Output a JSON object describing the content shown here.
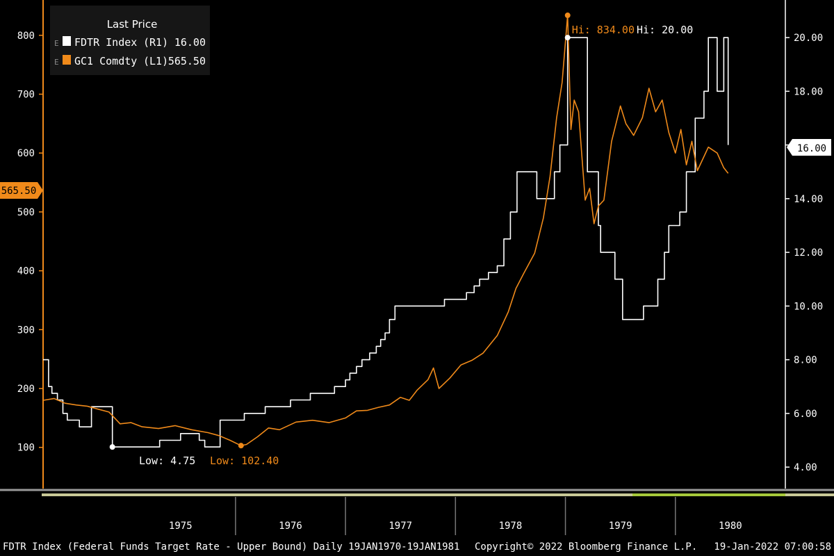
{
  "legend": {
    "title": "Last Price",
    "items": [
      {
        "name": "FDTR Index",
        "axis": "(R1)",
        "value": "16.00",
        "color": "#ffffff",
        "marker": "E"
      },
      {
        "name": "GC1 Comdty",
        "axis": "(L1)",
        "value": "565.50",
        "color": "#f08a1a",
        "marker": "E"
      }
    ]
  },
  "annotations": {
    "gold_high": "Hi: 834.00",
    "rate_high": "Hi: 20.00",
    "rate_low": "Low: 4.75",
    "gold_low": "Low: 102.40"
  },
  "tags": {
    "gold_last": "565.50",
    "rate_last": "16.00"
  },
  "footer": {
    "description": "FDTR Index (Federal Funds Target Rate - Upper Bound)  Daily 19JAN1970-19JAN1981",
    "copyright": "Copyright© 2022 Bloomberg Finance L.P.",
    "timestamp": "19-Jan-2022 07:00:58"
  },
  "colors": {
    "background": "#000000",
    "gold": "#f08a1a",
    "rate": "#ffffff",
    "axis": "#f08a1a"
  },
  "chart_data": {
    "type": "line",
    "x_range": [
      1974.25,
      1981.0
    ],
    "x_ticks": [
      "1975",
      "1976",
      "1977",
      "1978",
      "1979",
      "1980"
    ],
    "left_axis": {
      "ticks": [
        "100",
        "200",
        "300",
        "400",
        "500",
        "600",
        "700",
        "800"
      ],
      "ylim": [
        30,
        860
      ]
    },
    "right_axis": {
      "ticks": [
        "4.00",
        "6.00",
        "8.00",
        "10.00",
        "12.00",
        "14.00",
        "16.00",
        "18.00",
        "20.00"
      ],
      "ylim": [
        3.2,
        21.4
      ]
    },
    "series": [
      {
        "name": "FDTR Index",
        "axis": "right",
        "step": true,
        "points": [
          [
            1974.25,
            8.0
          ],
          [
            1974.3,
            7.0
          ],
          [
            1974.33,
            6.75
          ],
          [
            1974.38,
            6.5
          ],
          [
            1974.43,
            6.0
          ],
          [
            1974.47,
            5.75
          ],
          [
            1974.58,
            5.5
          ],
          [
            1974.69,
            6.25
          ],
          [
            1974.87,
            6.25
          ],
          [
            1974.88,
            4.75
          ],
          [
            1975.08,
            4.75
          ],
          [
            1975.31,
            5.0
          ],
          [
            1975.49,
            5.0
          ],
          [
            1975.5,
            5.25
          ],
          [
            1975.67,
            5.0
          ],
          [
            1975.72,
            4.75
          ],
          [
            1975.83,
            4.75
          ],
          [
            1975.86,
            5.75
          ],
          [
            1976.08,
            6.0
          ],
          [
            1976.26,
            6.0
          ],
          [
            1976.27,
            6.25
          ],
          [
            1976.5,
            6.5
          ],
          [
            1976.62,
            6.5
          ],
          [
            1976.68,
            6.75
          ],
          [
            1976.9,
            7.0
          ],
          [
            1977.0,
            7.25
          ],
          [
            1977.04,
            7.5
          ],
          [
            1977.1,
            7.75
          ],
          [
            1977.15,
            8.0
          ],
          [
            1977.22,
            8.25
          ],
          [
            1977.28,
            8.5
          ],
          [
            1977.32,
            8.75
          ],
          [
            1977.36,
            9.0
          ],
          [
            1977.4,
            9.5
          ],
          [
            1977.45,
            10.0
          ],
          [
            1977.82,
            10.0
          ],
          [
            1977.9,
            10.25
          ],
          [
            1978.1,
            10.5
          ],
          [
            1978.17,
            10.75
          ],
          [
            1978.22,
            11.0
          ],
          [
            1978.3,
            11.25
          ],
          [
            1978.38,
            11.5
          ],
          [
            1978.44,
            12.5
          ],
          [
            1978.5,
            13.5
          ],
          [
            1978.56,
            15.0
          ],
          [
            1978.73,
            15.0
          ],
          [
            1978.74,
            14.0
          ],
          [
            1978.86,
            14.0
          ],
          [
            1978.9,
            15.0
          ],
          [
            1978.95,
            16.0
          ],
          [
            1979.02,
            20.0
          ],
          [
            1979.13,
            20.0
          ],
          [
            1979.2,
            15.0
          ],
          [
            1979.3,
            13.0
          ],
          [
            1979.32,
            12.0
          ],
          [
            1979.38,
            12.0
          ],
          [
            1979.45,
            11.0
          ],
          [
            1979.52,
            9.5
          ],
          [
            1979.7,
            9.5
          ],
          [
            1979.71,
            10.0
          ],
          [
            1979.8,
            10.0
          ],
          [
            1979.84,
            11.0
          ],
          [
            1979.9,
            12.0
          ],
          [
            1979.94,
            13.0
          ],
          [
            1980.04,
            13.5
          ],
          [
            1980.1,
            15.0
          ],
          [
            1980.18,
            17.0
          ],
          [
            1980.26,
            18.0
          ],
          [
            1980.3,
            20.0
          ],
          [
            1980.36,
            20.0
          ],
          [
            1980.38,
            18.0
          ],
          [
            1980.42,
            18.0
          ],
          [
            1980.44,
            20.0
          ],
          [
            1980.46,
            20.0
          ],
          [
            1980.48,
            16.0
          ]
        ]
      },
      {
        "name": "GC1 Comdty",
        "axis": "left",
        "step": false,
        "points": [
          [
            1974.25,
            180
          ],
          [
            1974.35,
            183
          ],
          [
            1974.45,
            175
          ],
          [
            1974.55,
            172
          ],
          [
            1974.65,
            170
          ],
          [
            1974.75,
            165
          ],
          [
            1974.85,
            160
          ],
          [
            1974.95,
            140
          ],
          [
            1975.05,
            142
          ],
          [
            1975.15,
            135
          ],
          [
            1975.3,
            132
          ],
          [
            1975.45,
            137
          ],
          [
            1975.6,
            130
          ],
          [
            1975.75,
            125
          ],
          [
            1975.85,
            120
          ],
          [
            1975.95,
            112
          ],
          [
            1976.05,
            103
          ],
          [
            1976.1,
            105
          ],
          [
            1976.2,
            118
          ],
          [
            1976.3,
            133
          ],
          [
            1976.4,
            130
          ],
          [
            1976.55,
            143
          ],
          [
            1976.7,
            146
          ],
          [
            1976.85,
            142
          ],
          [
            1977.0,
            150
          ],
          [
            1977.1,
            162
          ],
          [
            1977.2,
            163
          ],
          [
            1977.3,
            168
          ],
          [
            1977.4,
            172
          ],
          [
            1977.5,
            185
          ],
          [
            1977.58,
            180
          ],
          [
            1977.65,
            197
          ],
          [
            1977.75,
            215
          ],
          [
            1977.8,
            235
          ],
          [
            1977.85,
            200
          ],
          [
            1977.95,
            218
          ],
          [
            1978.05,
            240
          ],
          [
            1978.15,
            248
          ],
          [
            1978.25,
            260
          ],
          [
            1978.38,
            290
          ],
          [
            1978.48,
            330
          ],
          [
            1978.55,
            370
          ],
          [
            1978.62,
            395
          ],
          [
            1978.72,
            430
          ],
          [
            1978.8,
            490
          ],
          [
            1978.86,
            560
          ],
          [
            1978.92,
            660
          ],
          [
            1978.97,
            720
          ],
          [
            1979.02,
            834
          ],
          [
            1979.05,
            640
          ],
          [
            1979.08,
            690
          ],
          [
            1979.12,
            670
          ],
          [
            1979.18,
            520
          ],
          [
            1979.22,
            540
          ],
          [
            1979.26,
            480
          ],
          [
            1979.3,
            510
          ],
          [
            1979.35,
            520
          ],
          [
            1979.42,
            620
          ],
          [
            1979.5,
            680
          ],
          [
            1979.55,
            650
          ],
          [
            1979.62,
            630
          ],
          [
            1979.7,
            660
          ],
          [
            1979.76,
            710
          ],
          [
            1979.82,
            670
          ],
          [
            1979.88,
            690
          ],
          [
            1979.94,
            635
          ],
          [
            1980.0,
            600
          ],
          [
            1980.05,
            640
          ],
          [
            1980.1,
            580
          ],
          [
            1980.15,
            620
          ],
          [
            1980.2,
            570
          ],
          [
            1980.3,
            610
          ],
          [
            1980.38,
            600
          ],
          [
            1980.44,
            575
          ],
          [
            1980.48,
            565.5
          ]
        ]
      }
    ]
  }
}
